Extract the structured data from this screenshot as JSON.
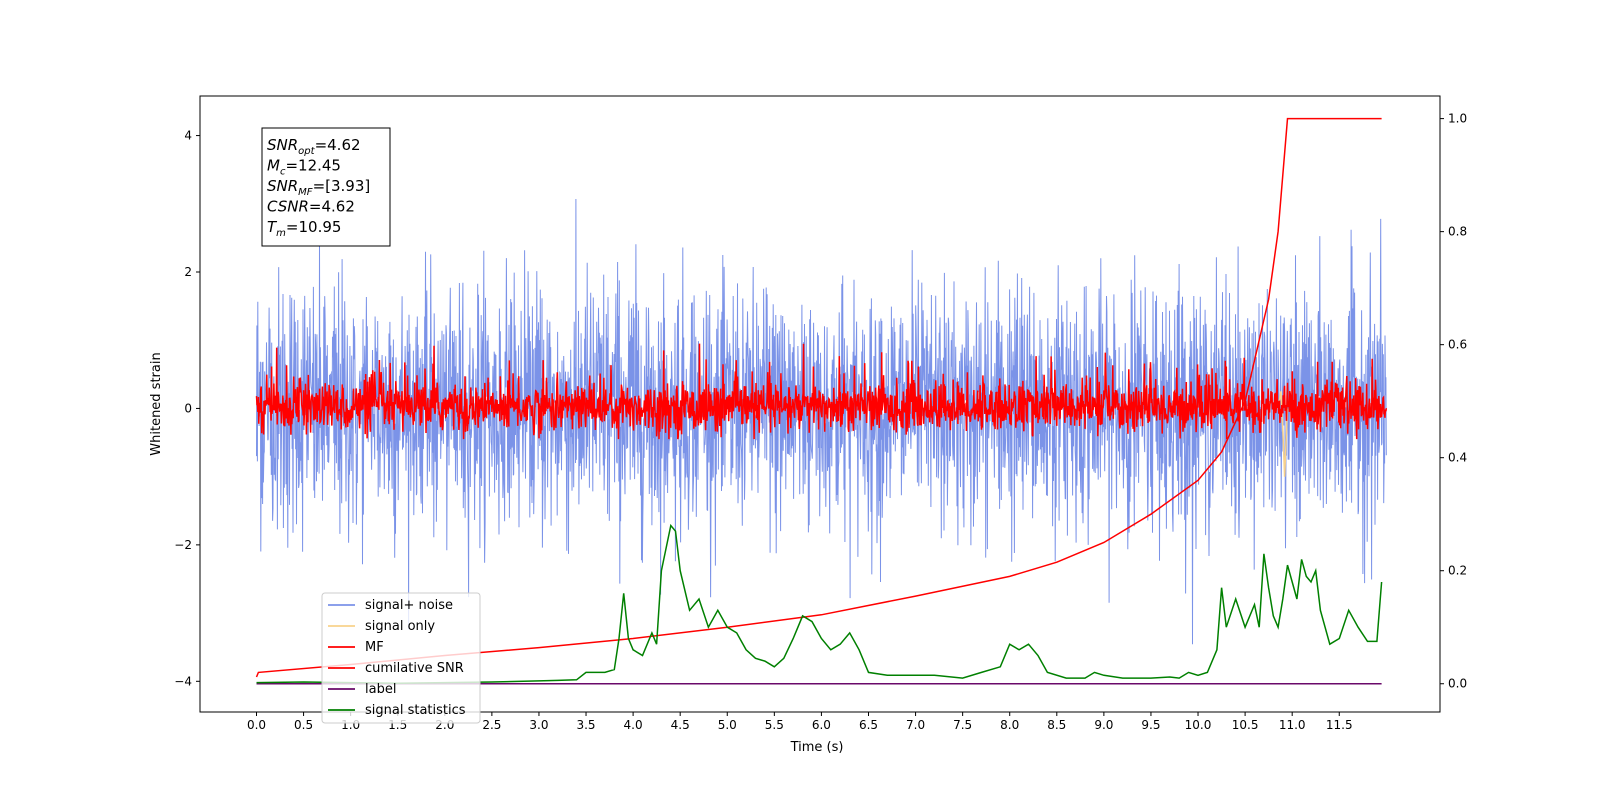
{
  "chart_data": {
    "type": "line",
    "xlabel": "Time (s)",
    "ylabel": "Whitened strain",
    "xlim": [
      -0.6,
      12.57
    ],
    "ylim": [
      -4.45,
      4.58
    ],
    "ylim_right": [
      -0.05,
      1.04
    ],
    "xticks": [
      "0.0",
      "0.5",
      "1.0",
      "1.5",
      "2.0",
      "2.5",
      "3.0",
      "3.5",
      "4.0",
      "4.5",
      "5.0",
      "5.5",
      "6.0",
      "6.5",
      "7.0",
      "7.5",
      "8.0",
      "8.5",
      "9.0",
      "9.5",
      "10.0",
      "10.5",
      "11.0",
      "11.5"
    ],
    "yticks_left": [
      "4",
      "2",
      "0",
      "−2",
      "−4"
    ],
    "yticks_right": [
      "1.0",
      "0.8",
      "0.6",
      "0.4",
      "0.2",
      "0.0"
    ],
    "annotation": {
      "lines": [
        {
          "sym": "SNR",
          "sub": "opt",
          "val": "=4.62"
        },
        {
          "sym": "M",
          "sub": "c",
          "val": "=12.45"
        },
        {
          "sym": "SNR",
          "sub": "MF",
          "val": "=[3.93]"
        },
        {
          "sym": "CSNR",
          "sub": "",
          "val": "=4.62"
        },
        {
          "sym": "T",
          "sub": "m",
          "val": "=10.95"
        }
      ]
    },
    "legend": {
      "position": "lower-left",
      "entries": [
        {
          "label": "signal+ noise",
          "color": "#7b93e8"
        },
        {
          "label": "signal only",
          "color": "#f8d28c"
        },
        {
          "label": "MF",
          "color": "#ff0000"
        },
        {
          "label": "cumilative SNR",
          "color": "#ff0000"
        },
        {
          "label": "label",
          "color": "#6a0a6a"
        },
        {
          "label": "signal statistics",
          "color": "#008000"
        }
      ]
    },
    "series": [
      {
        "name": "signal+ noise",
        "axis": "left",
        "color": "#7b93e8",
        "t_range": [
          0,
          12
        ],
        "band_typical": [
          -1.6,
          1.6
        ],
        "extremes": [
          -3.9,
          4.2
        ]
      },
      {
        "name": "signal only",
        "axis": "left",
        "color": "#f8d28c",
        "t_range": [
          10.85,
          10.95
        ],
        "min": -1.0,
        "max": 0.25
      },
      {
        "name": "MF",
        "axis": "left",
        "color": "#ff0000",
        "t_range": [
          0,
          12
        ],
        "band_typical": [
          -0.4,
          0.5
        ],
        "extremes": [
          -0.45,
          1.0
        ]
      },
      {
        "name": "cumilative SNR",
        "axis": "right",
        "color": "#ff0000",
        "x": [
          0.0,
          0.02,
          1.0,
          2.0,
          3.0,
          4.0,
          5.0,
          6.0,
          7.0,
          8.0,
          8.5,
          9.0,
          9.5,
          10.0,
          10.25,
          10.5,
          10.75,
          10.85,
          10.95,
          11.95
        ],
        "y": [
          0.012,
          0.02,
          0.034,
          0.05,
          0.064,
          0.08,
          0.1,
          0.122,
          0.155,
          0.19,
          0.215,
          0.25,
          0.3,
          0.36,
          0.41,
          0.5,
          0.68,
          0.8,
          1.0,
          1.0
        ]
      },
      {
        "name": "label",
        "axis": "right",
        "color": "#6a0a6a",
        "x": [
          0.0,
          11.95
        ],
        "y": [
          0.0,
          0.0
        ]
      },
      {
        "name": "signal statistics",
        "axis": "right",
        "color": "#008000",
        "x": [
          0.0,
          0.5,
          1.0,
          1.5,
          2.0,
          2.5,
          3.0,
          3.2,
          3.4,
          3.5,
          3.7,
          3.8,
          3.85,
          3.9,
          3.95,
          4.0,
          4.1,
          4.2,
          4.25,
          4.3,
          4.4,
          4.45,
          4.5,
          4.6,
          4.7,
          4.8,
          4.9,
          5.0,
          5.1,
          5.2,
          5.3,
          5.4,
          5.5,
          5.6,
          5.7,
          5.8,
          5.9,
          6.0,
          6.1,
          6.2,
          6.3,
          6.4,
          6.5,
          6.7,
          7.0,
          7.2,
          7.5,
          7.7,
          7.9,
          8.0,
          8.1,
          8.2,
          8.3,
          8.4,
          8.6,
          8.8,
          8.9,
          9.0,
          9.2,
          9.5,
          9.7,
          9.8,
          9.9,
          10.0,
          10.1,
          10.2,
          10.25,
          10.3,
          10.4,
          10.5,
          10.6,
          10.65,
          10.7,
          10.75,
          10.8,
          10.85,
          10.9,
          10.95,
          11.0,
          11.05,
          11.1,
          11.15,
          11.2,
          11.25,
          11.3,
          11.4,
          11.5,
          11.6,
          11.7,
          11.8,
          11.9,
          11.95
        ],
        "y": [
          0.002,
          0.003,
          0.002,
          0.001,
          0.002,
          0.003,
          0.005,
          0.006,
          0.007,
          0.02,
          0.02,
          0.025,
          0.08,
          0.16,
          0.08,
          0.06,
          0.05,
          0.09,
          0.07,
          0.2,
          0.28,
          0.27,
          0.2,
          0.13,
          0.15,
          0.1,
          0.13,
          0.1,
          0.09,
          0.06,
          0.045,
          0.04,
          0.03,
          0.045,
          0.08,
          0.12,
          0.11,
          0.08,
          0.06,
          0.07,
          0.09,
          0.06,
          0.02,
          0.015,
          0.015,
          0.015,
          0.01,
          0.02,
          0.03,
          0.07,
          0.06,
          0.07,
          0.05,
          0.02,
          0.01,
          0.01,
          0.02,
          0.015,
          0.01,
          0.01,
          0.012,
          0.01,
          0.02,
          0.015,
          0.02,
          0.06,
          0.17,
          0.1,
          0.15,
          0.1,
          0.14,
          0.1,
          0.23,
          0.17,
          0.12,
          0.1,
          0.15,
          0.21,
          0.18,
          0.15,
          0.22,
          0.19,
          0.18,
          0.2,
          0.13,
          0.07,
          0.08,
          0.13,
          0.1,
          0.075,
          0.075,
          0.18
        ]
      }
    ]
  }
}
